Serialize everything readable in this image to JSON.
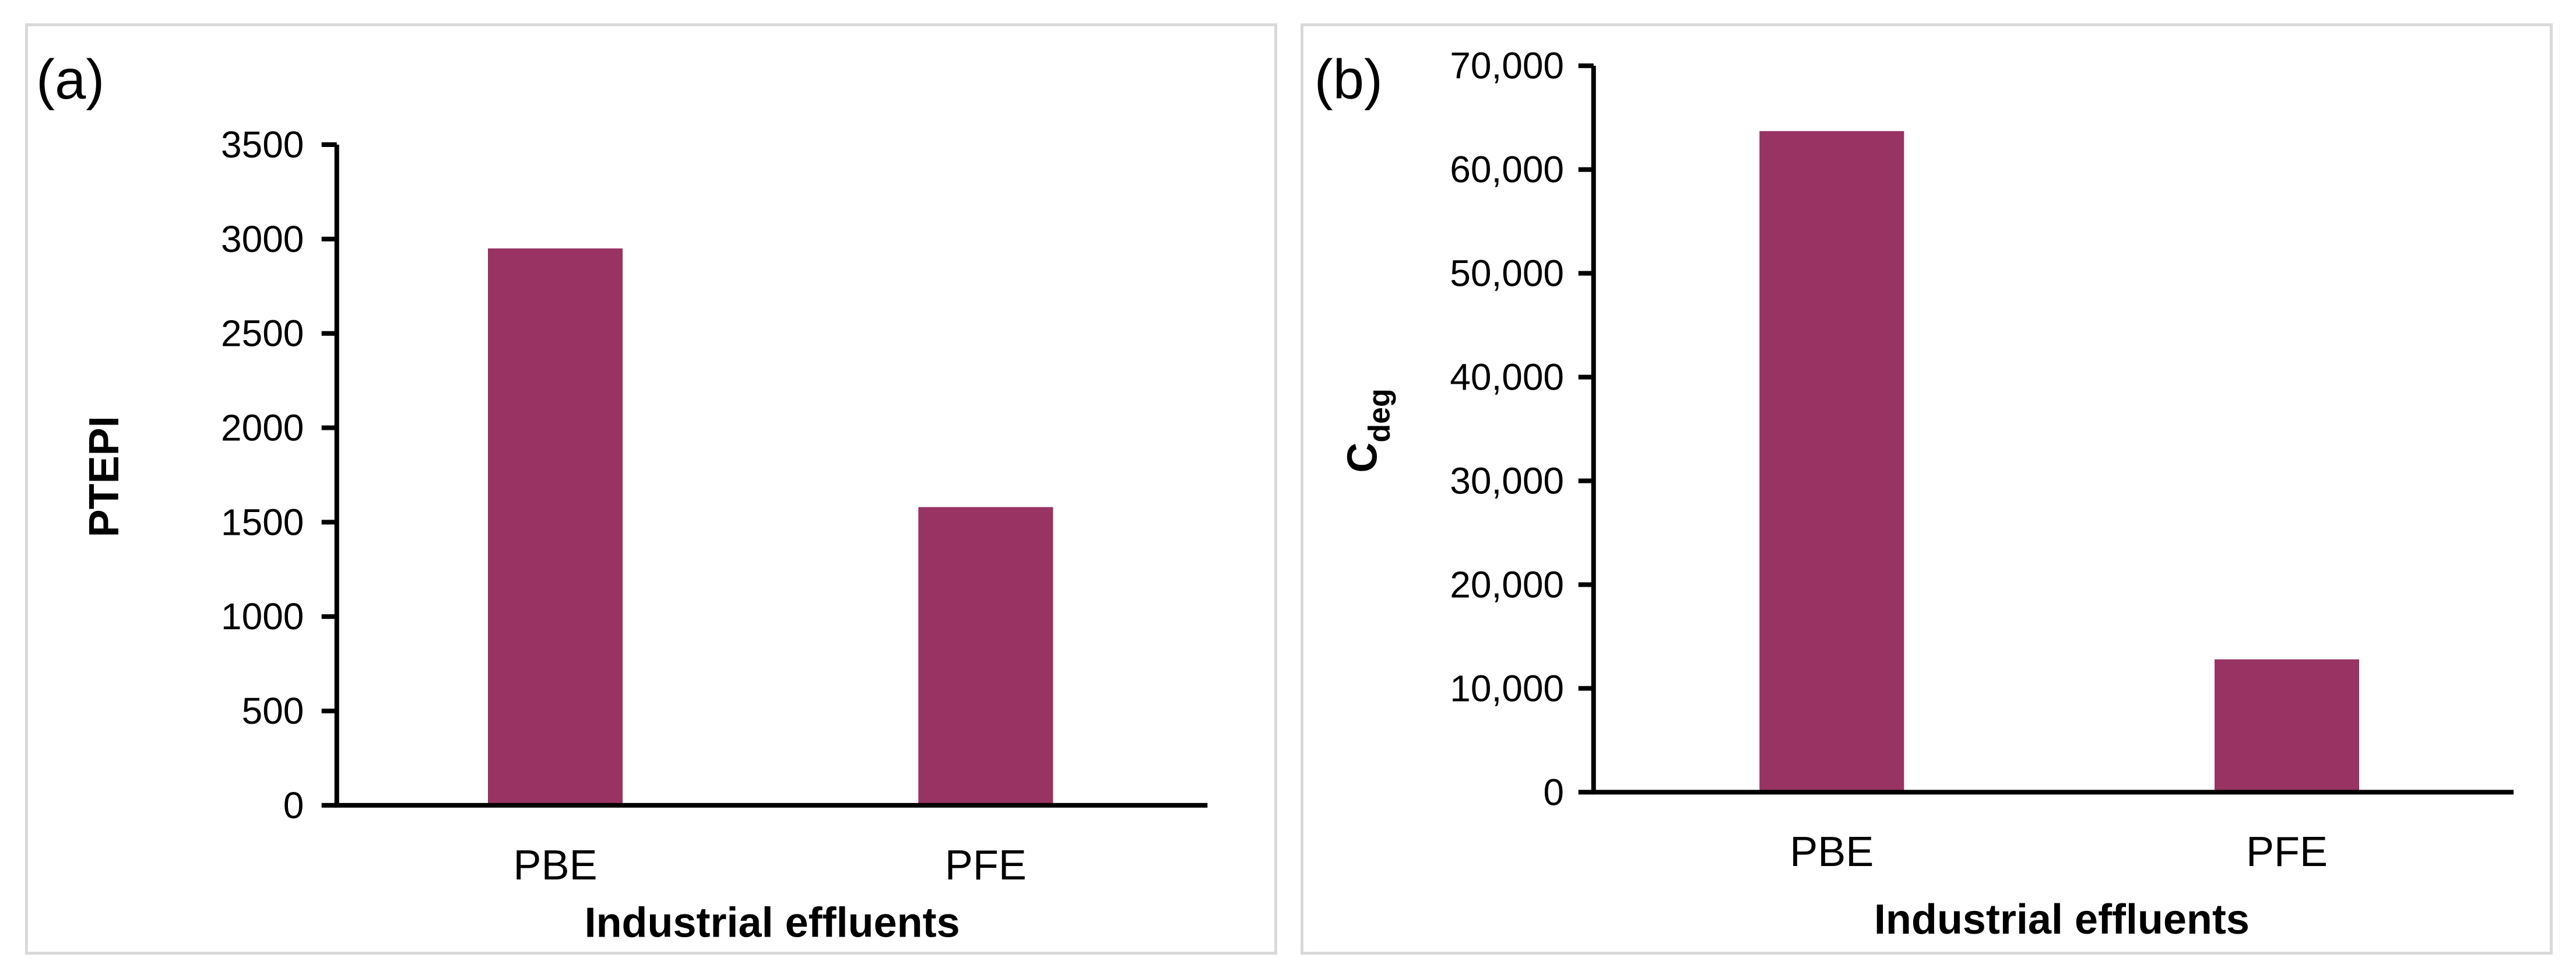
{
  "bar_color": "#983363",
  "axis_color": "#000000",
  "panel_border_color": "#d9d9d9",
  "chart_data": [
    {
      "type": "bar",
      "panel_label": "(a)",
      "categories": [
        "PBE",
        "PFE"
      ],
      "values": [
        2950,
        1580
      ],
      "xlabel": "Industrial effluents",
      "ylabel": "PTEPI",
      "ylabel_sub": "",
      "ylim": [
        0,
        3500
      ],
      "yticks": [
        0,
        500,
        1000,
        1500,
        2000,
        2500,
        3000,
        3500
      ],
      "ytick_labels": [
        "0",
        "500",
        "1000",
        "1500",
        "2000",
        "2500",
        "3000",
        "3500"
      ],
      "grid": false,
      "legend": "none"
    },
    {
      "type": "bar",
      "panel_label": "(b)",
      "categories": [
        "PBE",
        "PFE"
      ],
      "values": [
        63700,
        12800
      ],
      "xlabel": "Industrial effluents",
      "ylabel": "C",
      "ylabel_sub": "deg",
      "ylim": [
        0,
        70000
      ],
      "yticks": [
        0,
        10000,
        20000,
        30000,
        40000,
        50000,
        60000,
        70000
      ],
      "ytick_labels": [
        "0",
        "10,000",
        "20,000",
        "30,000",
        "40,000",
        "50,000",
        "60,000",
        "70,000"
      ],
      "grid": false,
      "legend": "none"
    }
  ]
}
